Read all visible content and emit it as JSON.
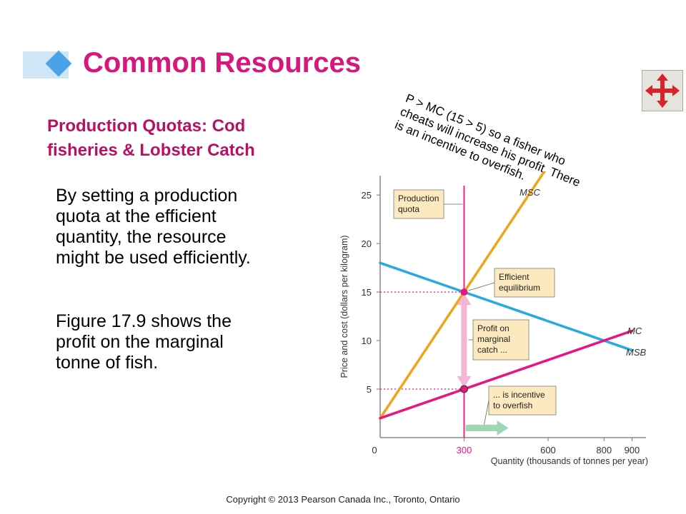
{
  "slide": {
    "title": "Common Resources",
    "subtitle_line1": "Production Quotas: Cod",
    "subtitle_line2": "fisheries & Lobster Catch",
    "para1_line1": "By setting a production",
    "para1_line2": "quota at the efficient",
    "para1_line3": "quantity, the resource",
    "para1_line4": "might be used efficiently.",
    "para2_line1": "Figure 17.9 shows the",
    "para2_line2": "profit on the marginal",
    "para2_line3": "tonne of fish.",
    "note_line1": "P > MC (15 > 5)  so a fisher who",
    "note_line2": "cheats will increase his profit. There",
    "note_line3": "is an incentive to overfish.",
    "copyright": "Copyright © 2013 Pearson Canada Inc., Toronto, Ontario",
    "nav_icon": "four-arrows-move-icon",
    "colors": {
      "title": "#d6177c",
      "subtitle": "#b71262",
      "msc": "#f5a21b",
      "msb": "#27a9e1",
      "mc": "#e6157f",
      "arrow": "#9fd6b4"
    }
  },
  "chart_data": {
    "type": "line",
    "xlabel": "Quantity (thousands of tonnes per year)",
    "ylabel": "Price and cost (dollars per kilogram)",
    "xlim": [
      0,
      950
    ],
    "ylim": [
      0,
      27
    ],
    "x_ticks": [
      "0",
      "300",
      "600",
      "800",
      "900"
    ],
    "x_tick_values": [
      0,
      300,
      600,
      800,
      900
    ],
    "y_ticks": [
      "5",
      "10",
      "15",
      "20",
      "25"
    ],
    "y_tick_values": [
      5,
      10,
      15,
      20,
      25
    ],
    "highlight_x_tick": "300",
    "series": [
      {
        "name": "MSC",
        "x": [
          0,
          300,
          600
        ],
        "y": [
          2,
          15,
          28
        ]
      },
      {
        "name": "MSB",
        "x": [
          0,
          300,
          900
        ],
        "y": [
          18,
          15,
          9
        ]
      },
      {
        "name": "MC",
        "x": [
          0,
          300,
          900
        ],
        "y": [
          2,
          5,
          11
        ]
      }
    ],
    "quota_x": 300,
    "efficient_point": {
      "x": 300,
      "y": 15
    },
    "mc_point": {
      "x": 300,
      "y": 5
    },
    "annotations": {
      "quota_line1": "Production",
      "quota_line2": "quota",
      "eff_line1": "Efficient",
      "eff_line2": "equilibrium",
      "profit_line1": "Profit on",
      "profit_line2": "marginal",
      "profit_line3": "catch ...",
      "incentive_line1": "... is incentive",
      "incentive_line2": "to overfish"
    }
  }
}
